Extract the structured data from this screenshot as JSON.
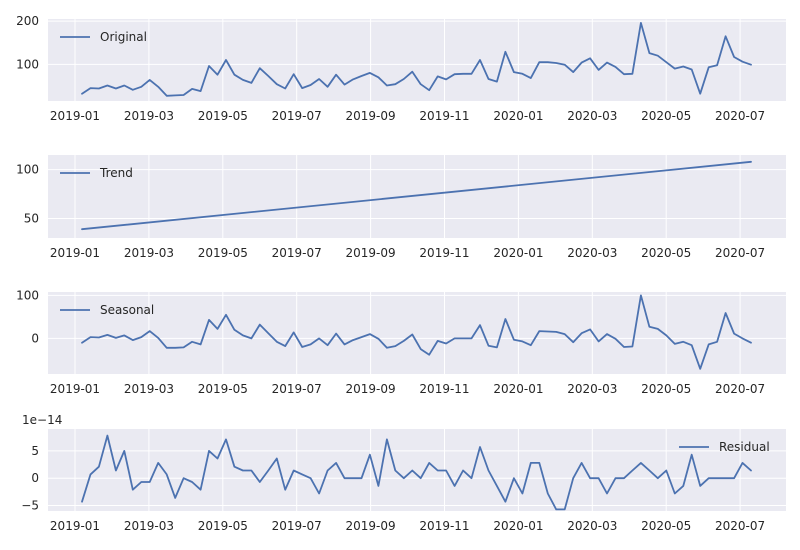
{
  "chart_data": [
    {
      "type": "line",
      "name": "Original",
      "legend": "upper-left",
      "ylim": [
        15,
        205
      ],
      "yticks": [
        100,
        200
      ],
      "ytick_labels": [
        "100",
        "200"
      ],
      "exponent_label": "",
      "grid": true,
      "xticks": [
        "2019-01",
        "2019-03",
        "2019-05",
        "2019-07",
        "2019-09",
        "2019-11",
        "2020-01",
        "2020-03",
        "2020-05",
        "2020-07"
      ],
      "series": [
        {
          "name": "Original",
          "color": "#4c72b0",
          "values": [
            32,
            45,
            44,
            51,
            44,
            51,
            41,
            48,
            64,
            48,
            27,
            28,
            29,
            43,
            38,
            96,
            76,
            110,
            76,
            64,
            57,
            91,
            73,
            54,
            44,
            77,
            45,
            52,
            66,
            48,
            76,
            53,
            65,
            73,
            80,
            70,
            51,
            54,
            66,
            83,
            54,
            40,
            72,
            65,
            77,
            78,
            78,
            110,
            66,
            60,
            129,
            82,
            78,
            68,
            105,
            105,
            103,
            99,
            82,
            104,
            114,
            87,
            104,
            94,
            77,
            78,
            196,
            126,
            120,
            105,
            90,
            95,
            88,
            32,
            93,
            98,
            165,
            117,
            106,
            99
          ]
        }
      ]
    },
    {
      "type": "line",
      "name": "Trend",
      "legend": "upper-left",
      "ylim": [
        30,
        115
      ],
      "yticks": [
        50,
        100
      ],
      "ytick_labels": [
        "50",
        "100"
      ],
      "exponent_label": "",
      "grid": true,
      "xticks": [
        "2019-01",
        "2019-03",
        "2019-05",
        "2019-07",
        "2019-09",
        "2019-11",
        "2020-01",
        "2020-03",
        "2020-05",
        "2020-07"
      ],
      "series": [
        {
          "name": "Trend",
          "color": "#4c72b0",
          "values": [
            39,
            108
          ]
        }
      ]
    },
    {
      "type": "line",
      "name": "Seasonal",
      "legend": "upper-left",
      "ylim": [
        -83,
        108
      ],
      "yticks": [
        0,
        100
      ],
      "ytick_labels": [
        "0",
        "100"
      ],
      "exponent_label": "",
      "grid": true,
      "xticks": [
        "2019-01",
        "2019-03",
        "2019-05",
        "2019-07",
        "2019-09",
        "2019-11",
        "2020-01",
        "2020-03",
        "2020-05",
        "2020-07"
      ],
      "series": [
        {
          "name": "Seasonal",
          "color": "#4c72b0",
          "values": [
            -10,
            3,
            2,
            8,
            1,
            7,
            -4,
            3,
            17,
            1,
            -22,
            -22,
            -21,
            -8,
            -14,
            43,
            22,
            55,
            20,
            7,
            0,
            32,
            12,
            -8,
            -18,
            14,
            -20,
            -14,
            0,
            -16,
            11,
            -14,
            -4,
            3,
            10,
            -1,
            -22,
            -18,
            -6,
            9,
            -25,
            -38,
            -6,
            -12,
            0,
            0,
            0,
            31,
            -17,
            -21,
            45,
            -3,
            -7,
            -16,
            17,
            16,
            15,
            10,
            -9,
            12,
            21,
            -7,
            10,
            -1,
            -20,
            -19,
            100,
            27,
            22,
            7,
            -13,
            -8,
            -16,
            -71,
            -14,
            -8,
            59,
            11,
            0,
            -10
          ]
        }
      ]
    },
    {
      "type": "line",
      "name": "Residual",
      "legend": "upper-right",
      "ylim": [
        -6,
        9
      ],
      "yticks": [
        -5,
        0,
        5
      ],
      "ytick_labels": [
        "−5",
        "0",
        "5"
      ],
      "exponent_label": "1e−14",
      "grid": true,
      "xticks": [
        "2019-01",
        "2019-03",
        "2019-05",
        "2019-07",
        "2019-09",
        "2019-11",
        "2020-01",
        "2020-03",
        "2020-05",
        "2020-07"
      ],
      "series": [
        {
          "name": "Residual",
          "color": "#4c72b0",
          "values": [
            -4.3,
            0.7,
            2.1,
            7.8,
            1.4,
            5.0,
            -2.1,
            -0.7,
            -0.7,
            2.8,
            0.7,
            -3.6,
            0,
            -0.7,
            -2.1,
            5.0,
            3.6,
            7.1,
            2.1,
            1.4,
            1.4,
            -0.7,
            1.4,
            3.6,
            -2.1,
            1.4,
            0.7,
            0,
            -2.8,
            1.4,
            2.8,
            0,
            0,
            0,
            4.3,
            -1.4,
            7.1,
            1.4,
            0,
            1.4,
            0,
            2.8,
            1.4,
            1.4,
            -1.4,
            1.4,
            0,
            5.7,
            1.4,
            -1.4,
            -4.3,
            0,
            -2.8,
            2.8,
            2.8,
            -2.8,
            -5.7,
            -5.7,
            0,
            2.8,
            0,
            0,
            -2.8,
            0,
            0,
            1.4,
            2.8,
            1.4,
            0,
            1.4,
            -2.8,
            -1.4,
            4.3,
            -1.4,
            0,
            0,
            0,
            0,
            2.8,
            1.4
          ]
        }
      ]
    }
  ]
}
